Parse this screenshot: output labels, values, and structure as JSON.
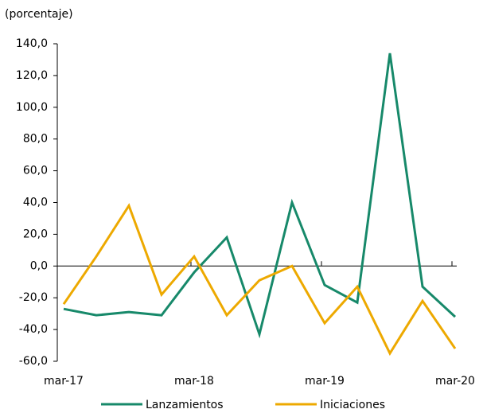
{
  "chart_data": {
    "type": "line",
    "title": "(porcentaje)",
    "categories": [
      "mar-17",
      null,
      null,
      null,
      "mar-18",
      null,
      null,
      null,
      "mar-19",
      null,
      null,
      null,
      "mar-20"
    ],
    "series": [
      {
        "name": "Lanzamientos",
        "color": "#17896a",
        "values": [
          -27,
          -31,
          -29,
          -31,
          -4,
          18,
          -43,
          40,
          -12,
          -23,
          134,
          -13,
          -32
        ]
      },
      {
        "name": "Iniciaciones",
        "color": "#eda900",
        "values": [
          -24,
          6,
          38,
          -18,
          6,
          -31,
          -9,
          0,
          -36,
          -13,
          -55,
          -22,
          -52
        ]
      }
    ],
    "ylim": [
      -60,
      140
    ],
    "yticks": [
      {
        "value": -60,
        "label": "-60,0"
      },
      {
        "value": -40,
        "label": "-40,0"
      },
      {
        "value": -20,
        "label": "-20,0"
      },
      {
        "value": 0,
        "label": "0,0"
      },
      {
        "value": 20,
        "label": "20,0"
      },
      {
        "value": 40,
        "label": "40,0"
      },
      {
        "value": 60,
        "label": "60,0"
      },
      {
        "value": 80,
        "label": "80,0"
      },
      {
        "value": 100,
        "label": "100,0"
      },
      {
        "value": 120,
        "label": "120,0"
      },
      {
        "value": 140,
        "label": "140,0"
      }
    ],
    "grid": false
  }
}
